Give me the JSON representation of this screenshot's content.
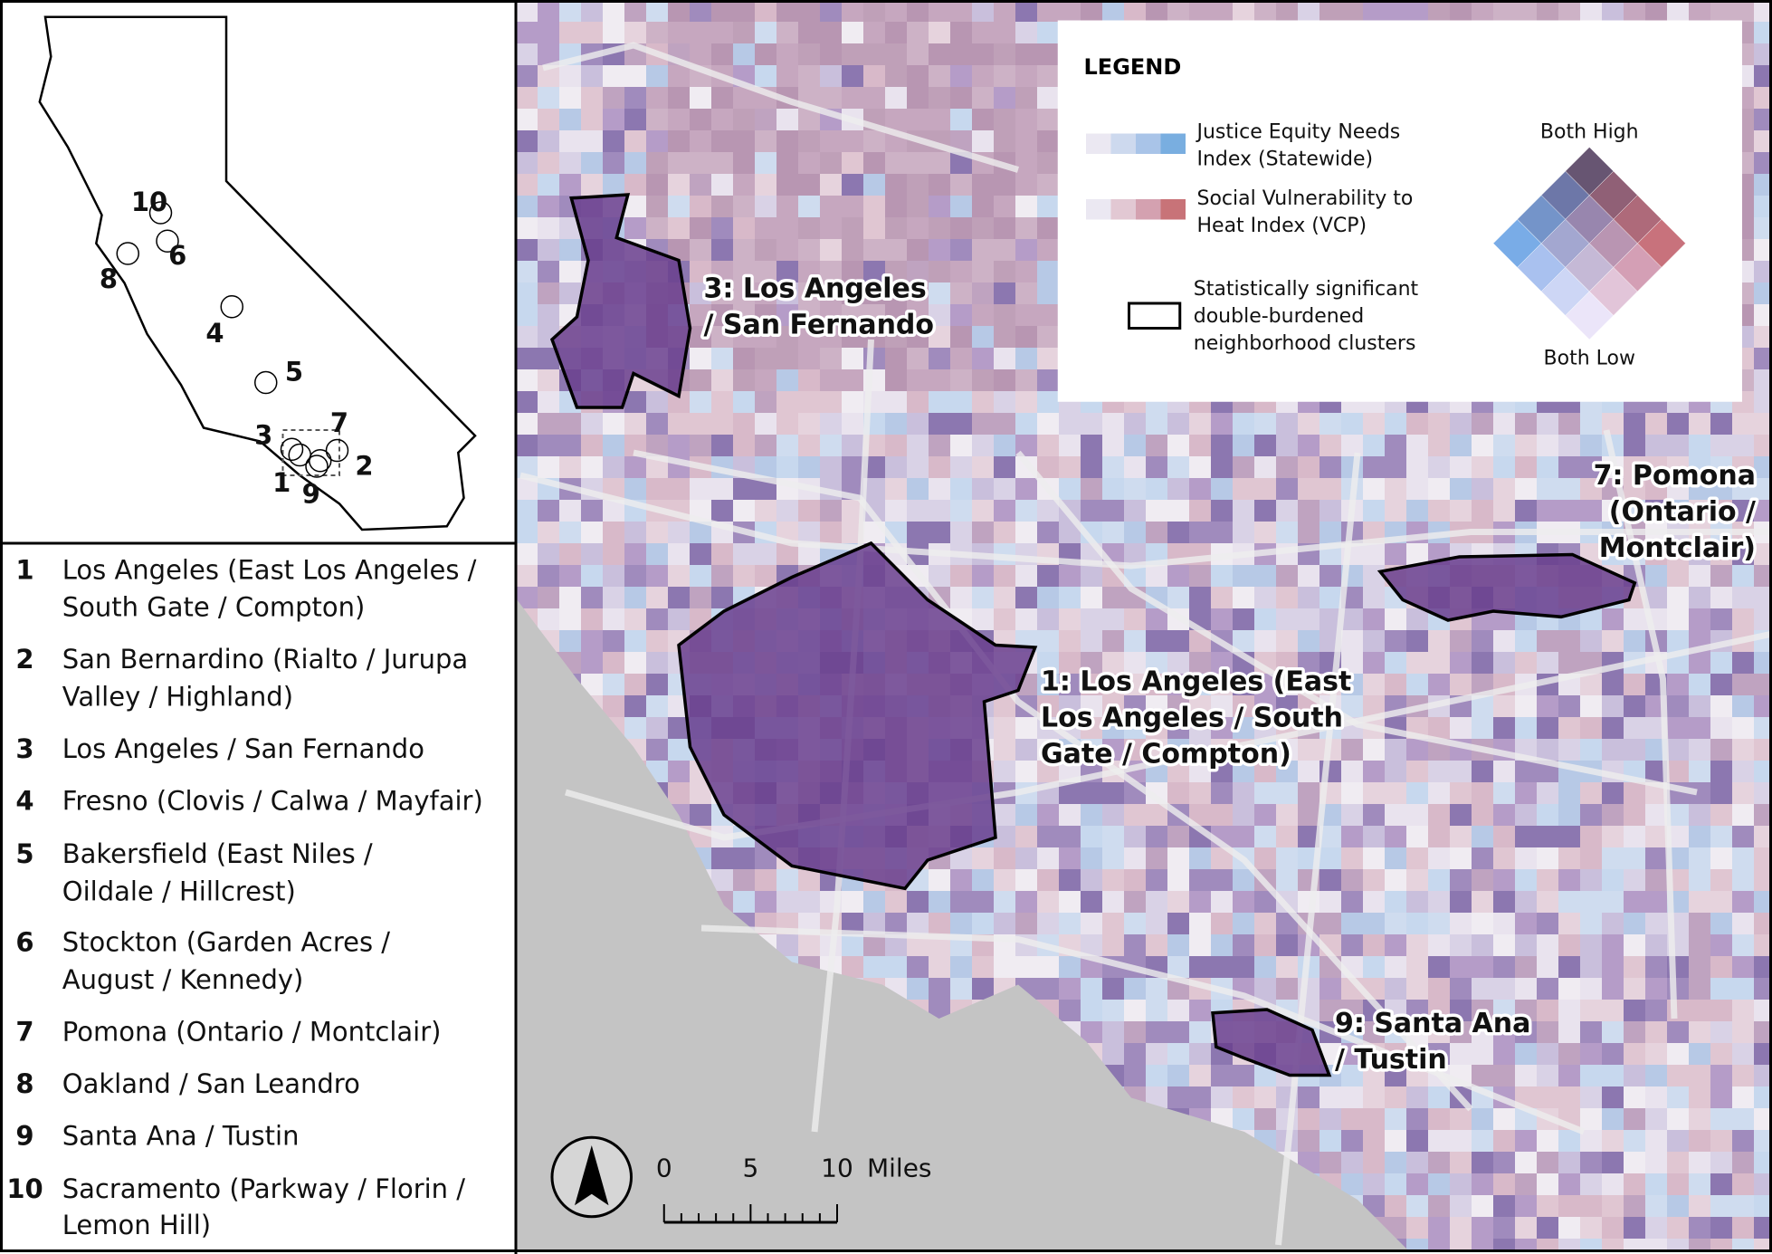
{
  "legend": {
    "title": "LEGEND",
    "items": [
      {
        "lines": [
          "Justice Equity Needs",
          "Index (Statewide)"
        ]
      },
      {
        "lines": [
          "Social Vulnerability to",
          "Heat Index (VCP)"
        ]
      },
      {
        "lines": [
          "Statistically significant",
          "double-burdened",
          "neighborhood clusters"
        ]
      }
    ],
    "diamond_top": "Both High",
    "diamond_bottom": "Both Low"
  },
  "clusters": [
    {
      "number": 1,
      "lines": [
        "Los Angeles (East Los Angeles /",
        "South Gate / Compton)"
      ]
    },
    {
      "number": 2,
      "lines": [
        "San Bernardino (Rialto / Jurupa",
        "Valley / Highland)"
      ]
    },
    {
      "number": 3,
      "lines": [
        "Los Angeles / San Fernando"
      ]
    },
    {
      "number": 4,
      "lines": [
        "Fresno (Clovis / Calwa / Mayfair)"
      ]
    },
    {
      "number": 5,
      "lines": [
        "Bakersfield (East Niles /",
        "Oildale / Hillcrest)"
      ]
    },
    {
      "number": 6,
      "lines": [
        "Stockton (Garden Acres /",
        "August / Kennedy)"
      ]
    },
    {
      "number": 7,
      "lines": [
        "Pomona (Ontario / Montclair)"
      ]
    },
    {
      "number": 8,
      "lines": [
        "Oakland / San Leandro"
      ]
    },
    {
      "number": 9,
      "lines": [
        "Santa Ana / Tustin"
      ]
    },
    {
      "number": 10,
      "lines": [
        "Sacramento (Parkway / Florin /",
        "Lemon Hill)"
      ]
    }
  ],
  "map_labels": [
    {
      "lines": [
        "3: Los Angeles",
        "/ San Fernando"
      ]
    },
    {
      "lines": [
        "1: Los Angeles (East",
        "Los Angeles / South",
        "Gate / Compton)"
      ]
    },
    {
      "lines": [
        "7: Pomona",
        "(Ontario /",
        "Montclair)"
      ]
    },
    {
      "lines": [
        "9: Santa Ana",
        "/ Tustin"
      ]
    }
  ],
  "scale_bar": {
    "ticks": [
      0,
      5,
      10
    ],
    "unit": "Miles"
  }
}
